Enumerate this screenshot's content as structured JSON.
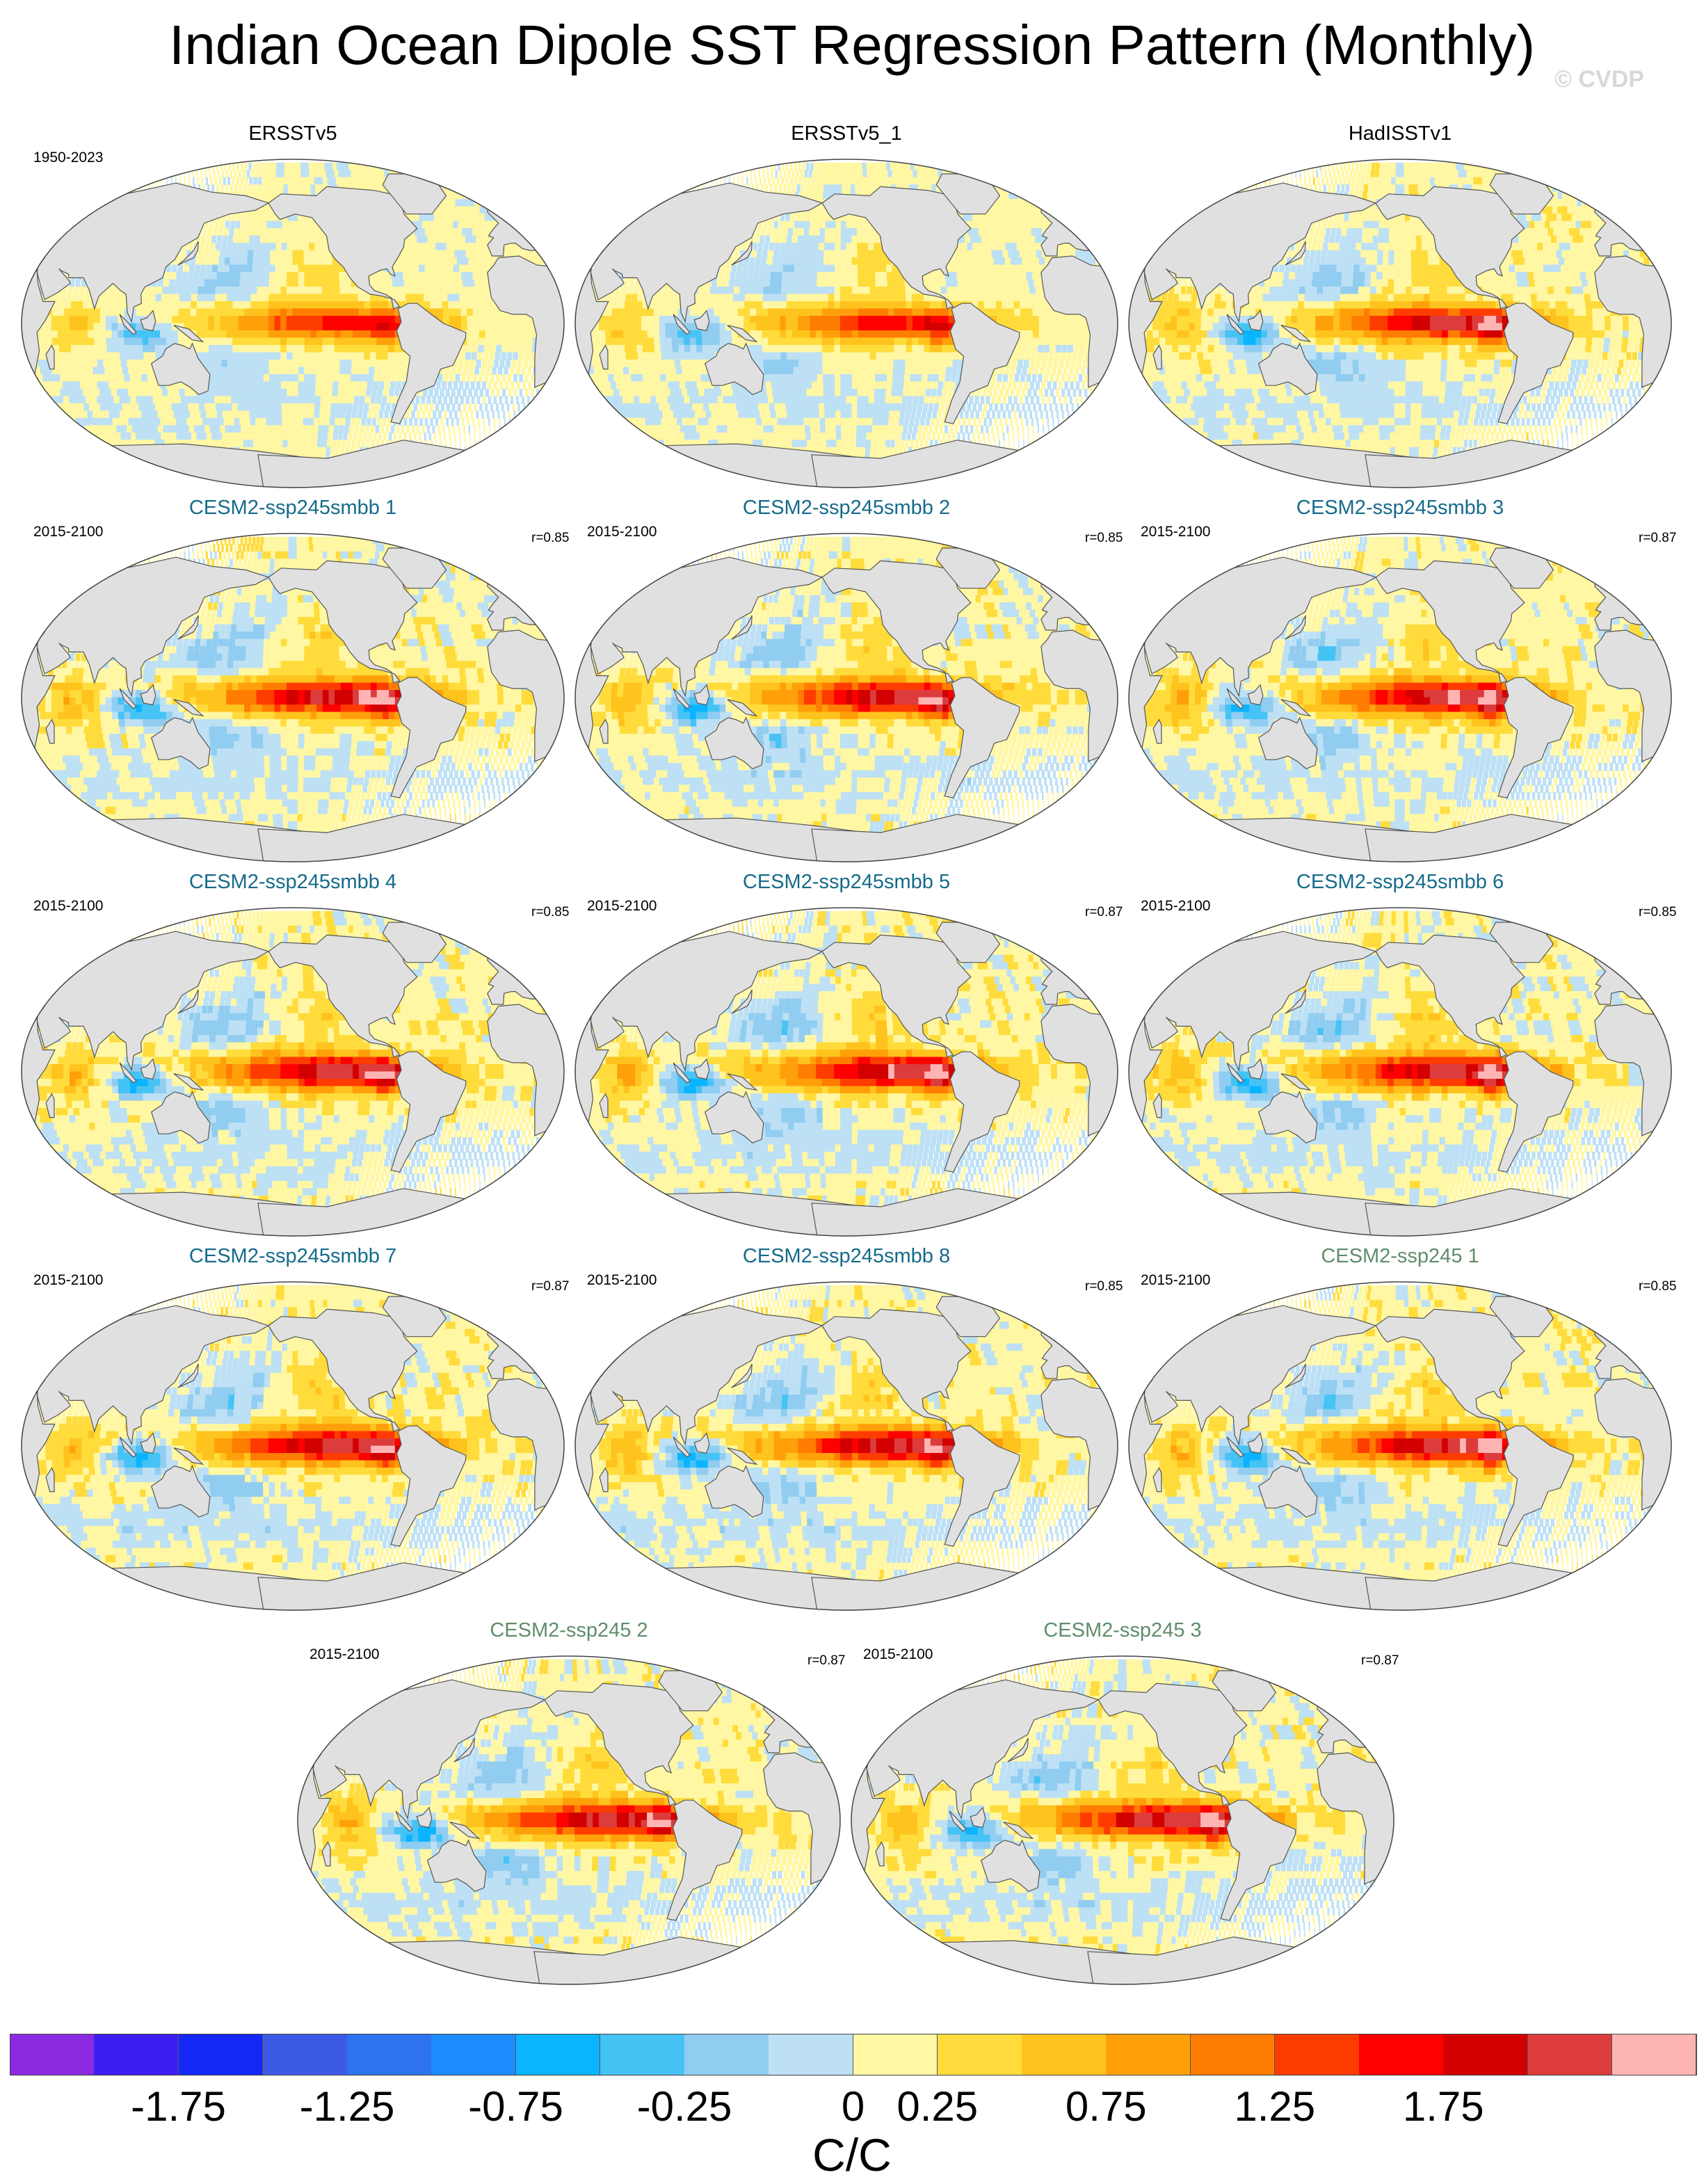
{
  "title": "Indian Ocean Dipole SST Regression Pattern (Monthly)",
  "watermark": "© CVDP",
  "panels": [
    {
      "name": "ERSSTv5",
      "period": "1950-2023",
      "corr": "",
      "group": "obs",
      "amp": 0.75
    },
    {
      "name": "ERSSTv5_1",
      "period": "",
      "corr": "",
      "group": "obs",
      "amp": 0.75
    },
    {
      "name": "HadISSTv1",
      "period": "",
      "corr": "",
      "group": "obs",
      "amp": 0.95
    },
    {
      "name": "CESM2-ssp245smbb 1",
      "period": "2015-2100",
      "corr": "r=0.85",
      "group": "model-a",
      "amp": 1.0
    },
    {
      "name": "CESM2-ssp245smbb 2",
      "period": "2015-2100",
      "corr": "r=0.85",
      "group": "model-a",
      "amp": 1.0
    },
    {
      "name": "CESM2-ssp245smbb 3",
      "period": "2015-2100",
      "corr": "r=0.87",
      "group": "model-a",
      "amp": 1.0
    },
    {
      "name": "CESM2-ssp245smbb 4",
      "period": "2015-2100",
      "corr": "r=0.85",
      "group": "model-a",
      "amp": 1.0
    },
    {
      "name": "CESM2-ssp245smbb 5",
      "period": "2015-2100",
      "corr": "r=0.87",
      "group": "model-a",
      "amp": 1.0
    },
    {
      "name": "CESM2-ssp245smbb 6",
      "period": "2015-2100",
      "corr": "r=0.85",
      "group": "model-a",
      "amp": 1.0
    },
    {
      "name": "CESM2-ssp245smbb 7",
      "period": "2015-2100",
      "corr": "r=0.87",
      "group": "model-a",
      "amp": 1.0
    },
    {
      "name": "CESM2-ssp245smbb 8",
      "period": "2015-2100",
      "corr": "r=0.85",
      "group": "model-a",
      "amp": 1.0
    },
    {
      "name": "CESM2-ssp245 1",
      "period": "2015-2100",
      "corr": "r=0.85",
      "group": "model-b",
      "amp": 1.0
    },
    {
      "name": "CESM2-ssp245 2",
      "period": "2015-2100",
      "corr": "r=0.87",
      "group": "model-b",
      "amp": 1.0
    },
    {
      "name": "CESM2-ssp245 3",
      "period": "2015-2100",
      "corr": "r=0.87",
      "group": "model-b",
      "amp": 1.0
    }
  ],
  "colorbar": {
    "unit": "C/C",
    "colors": [
      "#8a2be2",
      "#3c1ef0",
      "#1428f5",
      "#3c5ae6",
      "#2d73ee",
      "#1e8cff",
      "#0ab4ff",
      "#46c3f5",
      "#91cdf0",
      "#bde0f5",
      "#fff7a3",
      "#ffdc3c",
      "#ffc31e",
      "#ffa00a",
      "#ff7d00",
      "#ff3c00",
      "#ff0000",
      "#d20000",
      "#dc3c3c",
      "#ffb4b4"
    ],
    "tick_labels": [
      "-1.75",
      "-1.25",
      "-0.75",
      "-0.25",
      "0",
      "0.25",
      "0.75",
      "1.25",
      "1.75"
    ]
  },
  "colors": {
    "land": "#e0e0e0",
    "coast": "#555555"
  }
}
